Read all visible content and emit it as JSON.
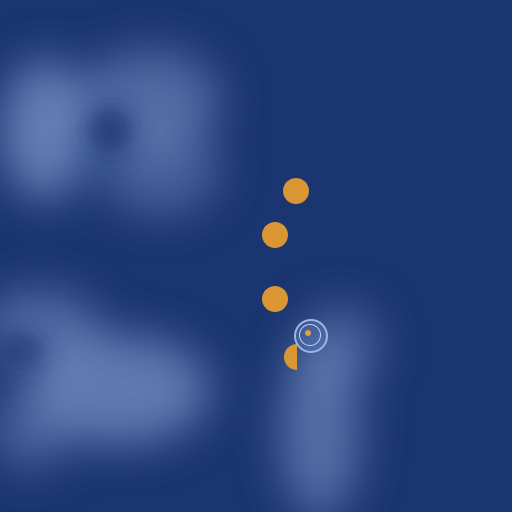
{
  "map": {
    "background_color": "#1b3570",
    "cloud_color": "#8ea3d6",
    "marker_color": "#d99632",
    "markers": [
      {
        "name": "marker-1"
      },
      {
        "name": "marker-2"
      },
      {
        "name": "marker-3"
      },
      {
        "name": "marker-4-partial"
      }
    ],
    "locator_icon": "target-icon"
  }
}
